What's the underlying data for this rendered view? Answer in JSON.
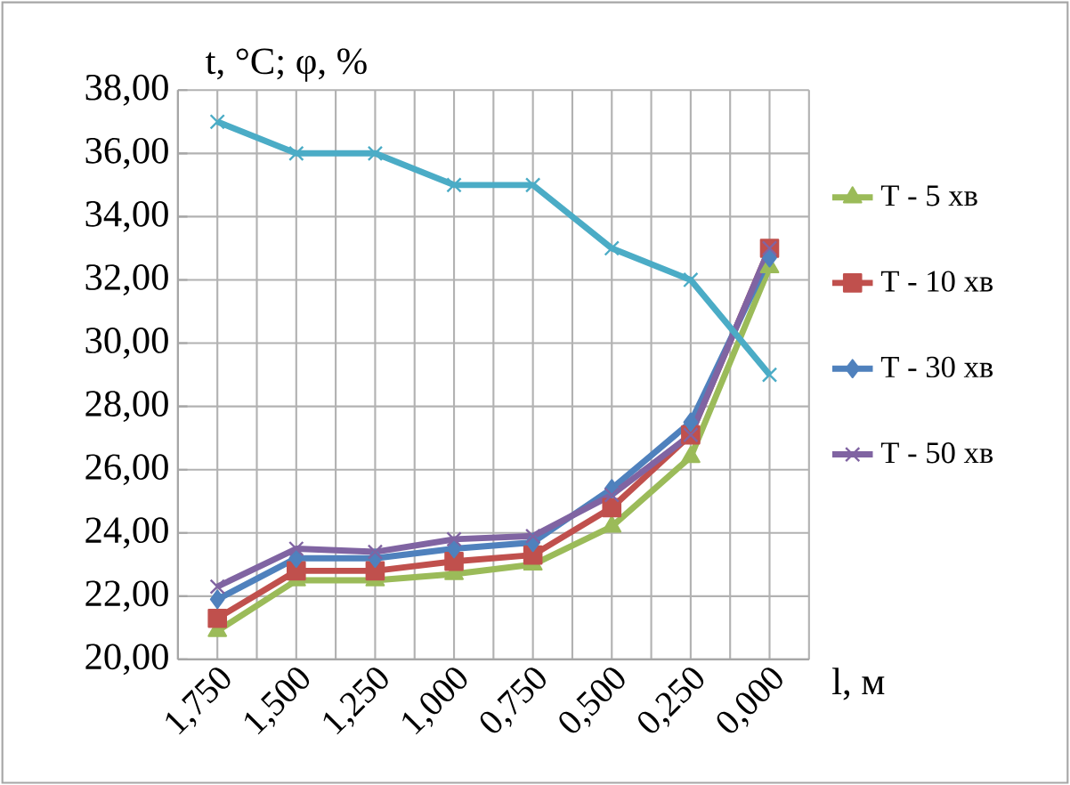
{
  "chart_data": {
    "type": "line",
    "ylabel": "t, °C; φ, %",
    "xlabel": "l, м",
    "categories": [
      "1,750",
      "1,500",
      "1,250",
      "1,000",
      "0,750",
      "0,500",
      "0,250",
      "0,000"
    ],
    "series": [
      {
        "name": "T - 5 хв",
        "color": "#9bbb59",
        "marker": "triangle",
        "values": [
          20.9,
          22.5,
          22.5,
          22.7,
          23.0,
          24.2,
          26.4,
          32.4
        ]
      },
      {
        "name": "T - 10 хв",
        "color": "#c0504d",
        "marker": "square",
        "values": [
          21.3,
          22.8,
          22.8,
          23.1,
          23.3,
          24.8,
          27.1,
          33.0
        ]
      },
      {
        "name": "T - 30 хв",
        "color": "#4f81bd",
        "marker": "diamond",
        "values": [
          21.9,
          23.2,
          23.2,
          23.5,
          23.7,
          25.4,
          27.5,
          32.7
        ]
      },
      {
        "name": "T - 50 хв",
        "color": "#8064a2",
        "marker": "cross",
        "values": [
          22.3,
          23.5,
          23.4,
          23.8,
          23.9,
          25.2,
          27.1,
          33.0
        ]
      },
      {
        "color": "#4bacc6",
        "marker": "cross",
        "values": [
          37,
          36,
          36,
          35,
          35,
          33,
          32,
          29
        ]
      }
    ],
    "ylim": [
      20,
      38
    ],
    "yticks": [
      {
        "value": 20,
        "label": "20,00"
      },
      {
        "value": 22,
        "label": "22,00"
      },
      {
        "value": 24,
        "label": "24,00"
      },
      {
        "value": 26,
        "label": "26,00"
      },
      {
        "value": 28,
        "label": "28,00"
      },
      {
        "value": 30,
        "label": "30,00"
      },
      {
        "value": 32,
        "label": "32,00"
      },
      {
        "value": 34,
        "label": "34,00"
      },
      {
        "value": 36,
        "label": "36,00"
      },
      {
        "value": 38,
        "label": "38,00"
      }
    ],
    "grid": true,
    "legend": "right"
  }
}
